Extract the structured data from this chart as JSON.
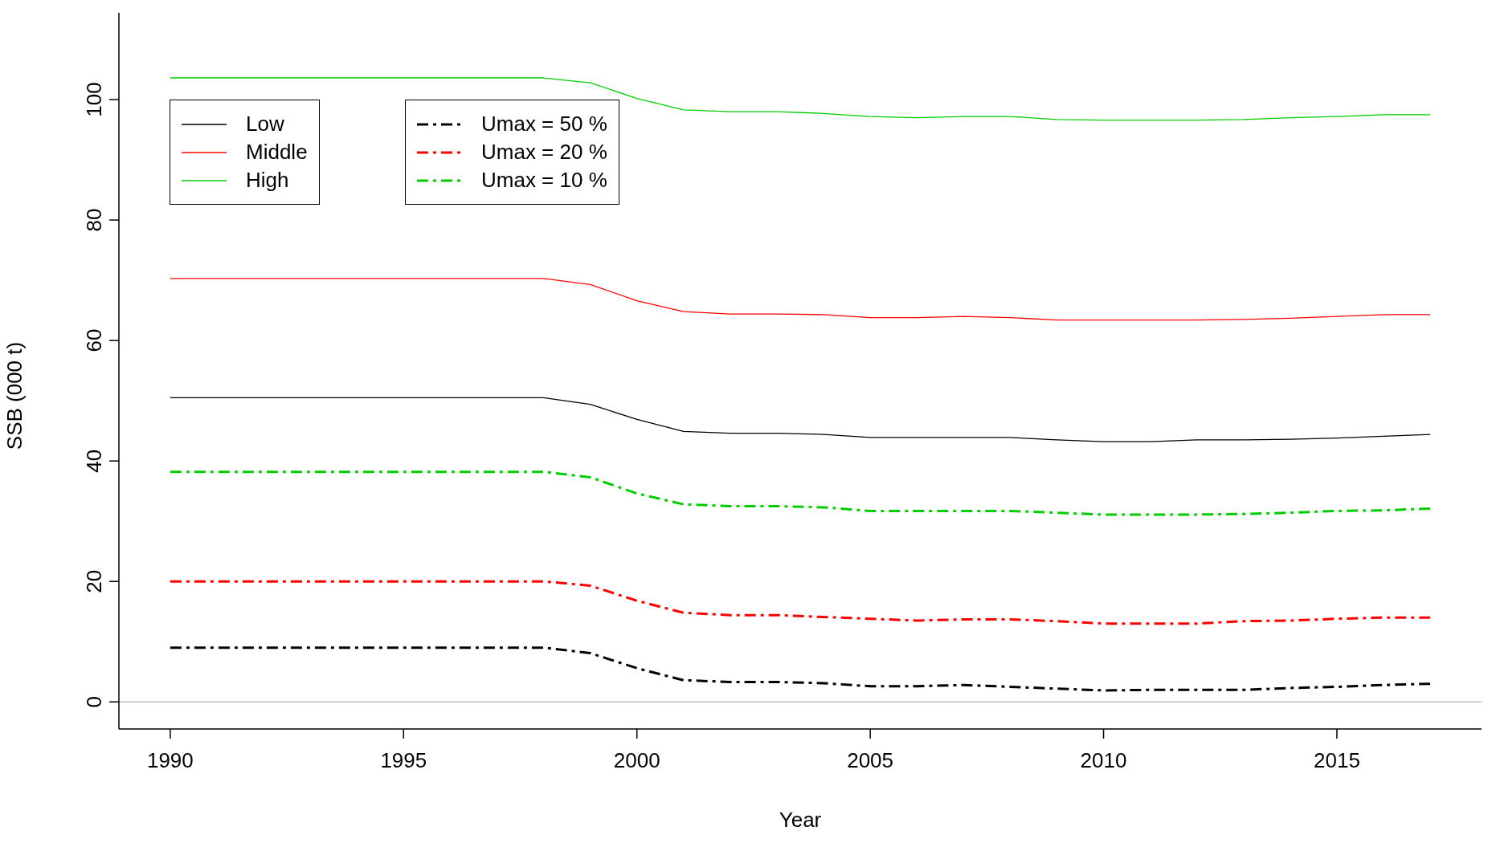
{
  "chart_data": {
    "type": "line",
    "xlabel": "Year",
    "ylabel": "SSB (000 t)",
    "x": [
      1990,
      1991,
      1992,
      1993,
      1994,
      1995,
      1996,
      1997,
      1998,
      1999,
      2000,
      2001,
      2002,
      2003,
      2004,
      2005,
      2006,
      2007,
      2008,
      2009,
      2010,
      2011,
      2012,
      2013,
      2014,
      2015,
      2016,
      2017
    ],
    "xlim": [
      1988.9,
      2018.1
    ],
    "xticks": [
      1990,
      1995,
      2000,
      2005,
      2010,
      2015
    ],
    "ylim": [
      -4.5,
      114.4
    ],
    "yticks": [
      0,
      20,
      40,
      60,
      80,
      100
    ],
    "grid": false,
    "legend": "top left",
    "ref_lines": [
      {
        "axis": "y",
        "value": 0,
        "color": "#bebebe"
      }
    ],
    "series": [
      {
        "name": "Low",
        "color": "#000000",
        "line_style": "solid",
        "values": [
          50.5,
          50.5,
          50.5,
          50.5,
          50.5,
          50.5,
          50.5,
          50.5,
          50.5,
          49.4,
          46.9,
          44.9,
          44.6,
          44.6,
          44.4,
          43.9,
          43.9,
          43.9,
          43.9,
          43.5,
          43.2,
          43.2,
          43.5,
          43.5,
          43.6,
          43.8,
          44.1,
          44.4
        ]
      },
      {
        "name": "Middle",
        "color": "#ff0000",
        "line_style": "solid",
        "values": [
          70.3,
          70.3,
          70.3,
          70.3,
          70.3,
          70.3,
          70.3,
          70.3,
          70.3,
          69.3,
          66.6,
          64.8,
          64.4,
          64.4,
          64.3,
          63.8,
          63.8,
          64,
          63.8,
          63.4,
          63.4,
          63.4,
          63.4,
          63.5,
          63.7,
          64,
          64.3,
          64.3
        ]
      },
      {
        "name": "High",
        "color": "#00cd00",
        "line_style": "solid",
        "values": [
          103.6,
          103.6,
          103.6,
          103.6,
          103.6,
          103.6,
          103.6,
          103.6,
          103.6,
          102.8,
          100.2,
          98.3,
          98,
          98,
          97.7,
          97.2,
          97,
          97.2,
          97.2,
          96.7,
          96.6,
          96.6,
          96.6,
          96.7,
          97,
          97.2,
          97.5,
          97.5
        ]
      },
      {
        "name": "Umax = 50 %",
        "color": "#000000",
        "line_style": "dashed",
        "values": [
          9,
          9,
          9,
          9,
          9,
          9,
          9,
          9,
          9,
          8.1,
          5.6,
          3.6,
          3.3,
          3.3,
          3.1,
          2.6,
          2.6,
          2.8,
          2.5,
          2.2,
          1.9,
          2,
          2,
          2,
          2.3,
          2.5,
          2.8,
          3
        ]
      },
      {
        "name": "Umax = 20 %",
        "color": "#ff0000",
        "line_style": "dashed",
        "values": [
          20,
          20,
          20,
          20,
          20,
          20,
          20,
          20,
          20,
          19.3,
          16.8,
          14.8,
          14.4,
          14.4,
          14.1,
          13.8,
          13.5,
          13.7,
          13.7,
          13.4,
          13,
          13,
          13,
          13.4,
          13.5,
          13.8,
          14,
          14
        ]
      },
      {
        "name": "Umax = 10 %",
        "color": "#00cd00",
        "line_style": "dashed",
        "values": [
          38.2,
          38.2,
          38.2,
          38.2,
          38.2,
          38.2,
          38.2,
          38.2,
          38.2,
          37.3,
          34.6,
          32.8,
          32.5,
          32.5,
          32.3,
          31.7,
          31.7,
          31.7,
          31.7,
          31.4,
          31.1,
          31.1,
          31.1,
          31.2,
          31.4,
          31.7,
          31.8,
          32.1
        ]
      }
    ]
  }
}
